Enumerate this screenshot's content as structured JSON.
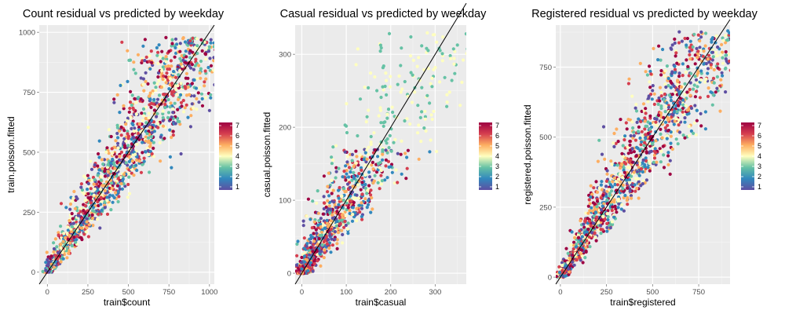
{
  "chart_data": [
    {
      "type": "scatter",
      "title": "Count residual vs predicted by weekday",
      "xlabel": "train$count",
      "ylabel": "train.poisson.fitted",
      "xlim": [
        -50,
        1030
      ],
      "ylim": [
        -50,
        1030
      ],
      "x_ticks": [
        0,
        250,
        500,
        750,
        1000
      ],
      "y_ticks": [
        0,
        250,
        500,
        750,
        1000
      ],
      "reference_line": {
        "slope": 1,
        "intercept": 0
      },
      "color_scale": {
        "label_values": [
          1,
          2,
          3,
          4,
          5,
          6,
          7
        ],
        "palette": "Spectral (reversed)"
      },
      "grid": true,
      "legend_position": "right"
    },
    {
      "type": "scatter",
      "title": "Casual residual vs predicted by weekday",
      "xlabel": "train$casual",
      "ylabel": "casual.poisson.fitted",
      "xlim": [
        -15,
        370
      ],
      "ylim": [
        -15,
        340
      ],
      "x_ticks": [
        0,
        100,
        200,
        300
      ],
      "y_ticks": [
        0,
        100,
        200,
        300
      ],
      "reference_line": {
        "slope": 1,
        "intercept": 0
      },
      "color_scale": {
        "label_values": [
          1,
          2,
          3,
          4,
          5,
          6,
          7
        ],
        "palette": "Spectral (reversed)"
      },
      "grid": true,
      "legend_position": "right"
    },
    {
      "type": "scatter",
      "title": "Registered residual vs predicted by weekday",
      "xlabel": "train$registered",
      "ylabel": "registered.poisson.fitted",
      "xlim": [
        -25,
        920
      ],
      "ylim": [
        -25,
        900
      ],
      "x_ticks": [
        0,
        250,
        500,
        750
      ],
      "y_ticks": [
        0,
        250,
        500,
        750
      ],
      "reference_line": {
        "slope": 1,
        "intercept": 0
      },
      "color_scale": {
        "label_values": [
          1,
          2,
          3,
          4,
          5,
          6,
          7
        ],
        "palette": "Spectral (reversed)"
      },
      "grid": true,
      "legend_position": "right"
    }
  ],
  "colors": {
    "panel_bg": "#ebebeb",
    "grid_major": "#ffffff",
    "reference_line": "#000000",
    "weekday_palette": [
      "#5e4fa2",
      "#3288bd",
      "#66c2a5",
      "#ffffbf",
      "#fdae61",
      "#d53e4f",
      "#9e0142"
    ]
  }
}
